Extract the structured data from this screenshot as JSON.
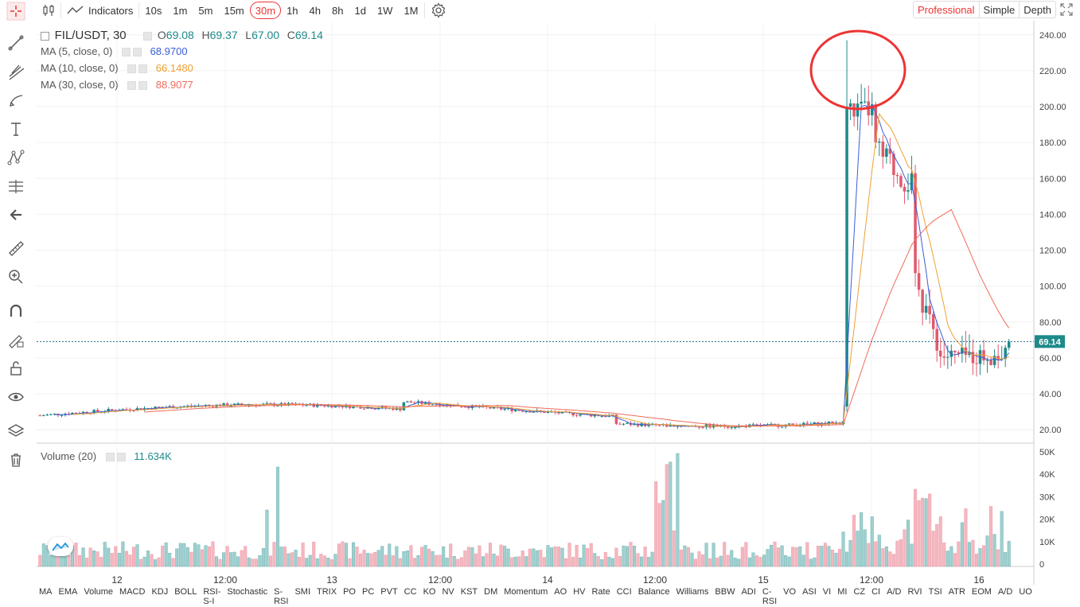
{
  "toolbar": {
    "indicators_label": "Indicators",
    "intervals": [
      "10s",
      "1m",
      "5m",
      "15m",
      "30m",
      "1h",
      "4h",
      "8h",
      "1d",
      "1W",
      "1M"
    ],
    "active_interval": "30m",
    "modes": [
      "Professional",
      "Simple",
      "Depth"
    ],
    "active_mode": "Professional"
  },
  "legend": {
    "symbol": "FIL/USDT, 30",
    "o": "69.08",
    "h": "69.37",
    "l": "67.00",
    "c": "69.14",
    "ma5_label": "MA (5, close, 0)",
    "ma5_value": "68.9700",
    "ma10_label": "MA (10, close, 0)",
    "ma10_value": "66.1480",
    "ma30_label": "MA (30, close, 0)",
    "ma30_value": "88.9077",
    "volume_label": "Volume (20)",
    "volume_value": "11.634K"
  },
  "colors": {
    "up": "#1f8a8a",
    "down": "#e05a6d",
    "ma5": "#3a5fd6",
    "ma10": "#f0a030",
    "ma30": "#f06a5a",
    "accent": "#e33"
  },
  "price_axis": {
    "ticks": [
      "240.00",
      "220.00",
      "200.00",
      "180.00",
      "160.00",
      "140.00",
      "120.00",
      "100.00",
      "80.00",
      "60.00",
      "40.00",
      "20.00"
    ],
    "last_price": "69.14"
  },
  "volume_axis": {
    "ticks": [
      "50K",
      "40K",
      "30K",
      "20K",
      "10K",
      "0"
    ]
  },
  "time_axis": {
    "ticks": [
      "12",
      "12:00",
      "13",
      "12:00",
      "14",
      "12:00",
      "15",
      "12:00",
      "16"
    ]
  },
  "bottom_indicators": [
    "MA",
    "EMA",
    "Volume",
    "MACD",
    "KDJ",
    "BOLL",
    "RSI-S-I",
    "Stochastic",
    "S-RSI",
    "SMI",
    "TRIX",
    "PO",
    "PC",
    "PVT",
    "CC",
    "KO",
    "NV",
    "KST",
    "DM",
    "Momentum",
    "AO",
    "HV",
    "Rate",
    "CCI",
    "Balance",
    "Williams",
    "BBW",
    "ADI",
    "C-RSI",
    "VO",
    "ASI",
    "VI",
    "MI",
    "CZ",
    "CI",
    "A/D",
    "RVI",
    "TSI",
    "ATR",
    "EOM",
    "A/D",
    "UO"
  ],
  "chart_data": {
    "type": "candlestick",
    "price_range": [
      13,
      247
    ],
    "volume_range": [
      0,
      50000
    ],
    "candles_summary": [
      {
        "phase": "flat",
        "price": 28,
        "until": "15 late"
      },
      {
        "phase": "spike",
        "open": 33,
        "high": 237,
        "low": 30,
        "close": 200
      },
      {
        "phase": "top",
        "high": 214,
        "close": 200
      },
      {
        "phase": "decline",
        "close": 160
      },
      {
        "phase": "crash",
        "close": 80
      },
      {
        "phase": "bottom",
        "low": 55,
        "close": 69.14
      }
    ]
  }
}
